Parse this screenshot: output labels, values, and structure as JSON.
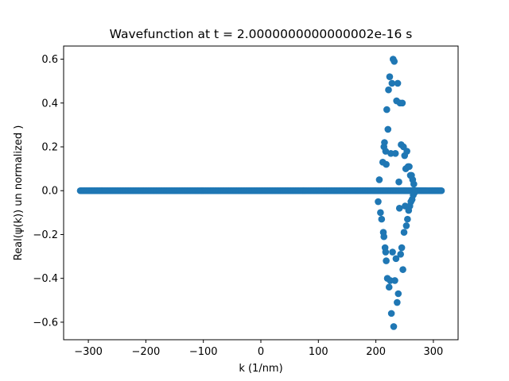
{
  "chart_data": {
    "type": "scatter",
    "title": "Wavefunction at t = 2.0000000000000002e-16 s",
    "xlabel": "k (1/nm)",
    "ylabel": "Real(ψ(k)) un normalized )",
    "xlim": [
      -343,
      343
    ],
    "ylim": [
      -0.68,
      0.66
    ],
    "xticks": [
      -300,
      -200,
      -100,
      0,
      100,
      200,
      300
    ],
    "yticks": [
      -0.6,
      -0.4,
      -0.2,
      0.0,
      0.2,
      0.4,
      0.6
    ],
    "xtick_labels": [
      "−300",
      "−200",
      "−100",
      "0",
      "100",
      "200",
      "300"
    ],
    "ytick_labels": [
      "−0.6",
      "−0.4",
      "−0.2",
      "0.0",
      "0.2",
      "0.4",
      "0.6"
    ],
    "grid": false,
    "marker_color": "#1f77b4",
    "series": [
      {
        "baseline_x_range": [
          -314,
          314
        ],
        "baseline_y": 0.0,
        "x": [
          198,
          204,
          206,
          208,
          210,
          212,
          213,
          214,
          214,
          215,
          216,
          217,
          217,
          218,
          218,
          219,
          220,
          221,
          222,
          223,
          224,
          225,
          226,
          227,
          228,
          229,
          230,
          231,
          232,
          233,
          234,
          235,
          236,
          237,
          238,
          239,
          240,
          241,
          242,
          243,
          244,
          245,
          246,
          247,
          248,
          249,
          250,
          251,
          252,
          253,
          254,
          255,
          256,
          257,
          258,
          259,
          260,
          261,
          262,
          263,
          264,
          265,
          266,
          267,
          268,
          269,
          270,
          272,
          275,
          278,
          282,
          286
        ],
        "y": [
          0.0,
          -0.05,
          0.05,
          -0.1,
          -0.13,
          0.13,
          -0.19,
          0.2,
          -0.21,
          0.22,
          -0.26,
          0.18,
          -0.28,
          0.12,
          -0.32,
          0.37,
          -0.4,
          0.28,
          0.46,
          -0.44,
          0.52,
          -0.41,
          0.17,
          -0.56,
          0.49,
          -0.28,
          0.6,
          -0.62,
          0.59,
          -0.41,
          0.17,
          -0.31,
          0.41,
          -0.51,
          0.49,
          -0.47,
          0.04,
          -0.08,
          0.4,
          -0.29,
          0.21,
          -0.26,
          0.4,
          -0.36,
          0.2,
          -0.19,
          0.16,
          -0.07,
          0.1,
          -0.16,
          0.18,
          -0.13,
          0.11,
          -0.09,
          0.11,
          -0.07,
          0.07,
          -0.05,
          0.07,
          -0.04,
          0.05,
          -0.02,
          0.03,
          -0.01,
          0.0,
          0.0,
          0.0,
          0.0,
          0.0,
          0.0,
          0.0,
          0.0
        ]
      }
    ]
  }
}
